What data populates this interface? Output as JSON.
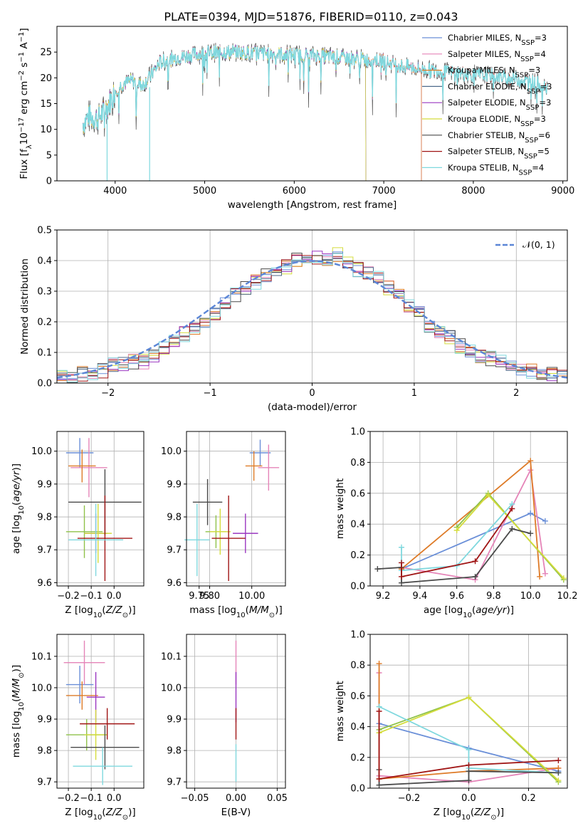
{
  "figure_title": "PLATE=0394, MJD=51876, FIBERID=0110, z=0.043",
  "colors": {
    "chabrier_miles": "#6a8fd8",
    "salpeter_miles": "#e584b8",
    "kroupa_miles": "#de7b28",
    "chabrier_elodie": "#4e6a8a",
    "salpeter_elodie": "#9a36c0",
    "kroupa_elodie": "#d4dc3c",
    "chabrier_stelib": "#4a4a4a",
    "salpeter_stelib": "#a01515",
    "kroupa_stelib": "#7fd8de",
    "green_elodie": "#8fc24a",
    "normal_curve": "#5b86d6"
  },
  "chart_data": [
    {
      "type": "line",
      "title": "PLATE=0394, MJD=51876, FIBERID=0110, z=0.043",
      "xlabel": "wavelength [Angstrom, rest frame]",
      "ylabel": "Flux [f_λ 10^-17 erg cm^-2 s^-1 A^-1]",
      "xlim": [
        3350,
        9050
      ],
      "ylim": [
        0,
        30
      ],
      "xticks": [
        "4000",
        "5000",
        "6000",
        "7000",
        "8000",
        "9000"
      ],
      "yticks": [
        "0",
        "5",
        "10",
        "15",
        "20",
        "25"
      ],
      "legend_position": "right",
      "continuum": {
        "x": [
          3640,
          3700,
          3800,
          3900,
          4000,
          4100,
          4200,
          4300,
          4400,
          4500,
          4700,
          5000,
          5300,
          5600,
          6000,
          6300,
          6600,
          7000,
          7200,
          7500,
          7800,
          8000,
          8300,
          8500,
          8800
        ],
        "y": [
          11,
          12.5,
          12,
          14,
          17.5,
          19,
          19.5,
          18.5,
          20.5,
          23,
          24,
          24.8,
          25,
          24.8,
          24.5,
          24.3,
          23.8,
          23.3,
          22.3,
          21.5,
          21,
          20.6,
          20.2,
          19.8,
          18.5
        ]
      },
      "series": [
        {
          "name": "Chabrier MILES, N_SSP=3",
          "x_end": 7420
        },
        {
          "name": "Salpeter MILES, N_SSP=4",
          "x_end": 7420
        },
        {
          "name": "Kroupa MILES, N_SSP=3",
          "x_end": 7420
        },
        {
          "name": "Chabrier ELODIE, N_SSP=3",
          "x_end": 6800
        },
        {
          "name": "Salpeter ELODIE, N_SSP=3",
          "x_end": 6800
        },
        {
          "name": "Kroupa ELODIE, N_SSP=3",
          "x_end": 6800
        },
        {
          "name": "Chabrier STELIB, N_SSP=6",
          "x_end": 8830
        },
        {
          "name": "Salpeter STELIB, N_SSP=5",
          "x_end": 8830
        },
        {
          "name": "Kroupa STELIB, N_SSP=4",
          "x_end": 8830
        }
      ],
      "legend": [
        {
          "prefix": "Chabrier MILES, N",
          "sub": "SSP",
          "suffix": "=3"
        },
        {
          "prefix": "Salpeter MILES, N",
          "sub": "SSP",
          "suffix": "=4"
        },
        {
          "prefix": "Kroupa MILES, N",
          "sub": "SSP",
          "suffix": "=3"
        },
        {
          "prefix": "Chabrier ELODIE, N",
          "sub": "SSP",
          "suffix": "=3"
        },
        {
          "prefix": "Salpeter ELODIE, N",
          "sub": "SSP",
          "suffix": "=3"
        },
        {
          "prefix": "Kroupa ELODIE, N",
          "sub": "SSP",
          "suffix": "=3"
        },
        {
          "prefix": "Chabrier STELIB, N",
          "sub": "SSP",
          "suffix": "=6"
        },
        {
          "prefix": "Salpeter STELIB, N",
          "sub": "SSP",
          "suffix": "=5"
        },
        {
          "prefix": "Kroupa STELIB, N",
          "sub": "SSP",
          "suffix": "=4"
        }
      ]
    },
    {
      "type": "line",
      "xlabel": "(data-model)/error",
      "ylabel": "Normed distribution",
      "xlim": [
        -2.5,
        2.5
      ],
      "ylim": [
        0,
        0.5
      ],
      "xticks": [
        "−2",
        "−1",
        "0",
        "1",
        "2"
      ],
      "yticks": [
        "0.0",
        "0.1",
        "0.2",
        "0.3",
        "0.4",
        "0.5"
      ],
      "grid": true,
      "legend_position": "top-right",
      "normal_curve_label": "𝒩(0, 1)",
      "bin_width": 0.1,
      "bin_start": -2.5,
      "base_histogram": [
        0.02,
        0.02,
        0.03,
        0.03,
        0.04,
        0.06,
        0.06,
        0.07,
        0.07,
        0.09,
        0.11,
        0.14,
        0.16,
        0.18,
        0.2,
        0.22,
        0.26,
        0.29,
        0.31,
        0.33,
        0.35,
        0.37,
        0.38,
        0.4,
        0.41,
        0.41,
        0.4,
        0.42,
        0.39,
        0.37,
        0.36,
        0.34,
        0.31,
        0.29,
        0.25,
        0.23,
        0.19,
        0.17,
        0.15,
        0.12,
        0.1,
        0.09,
        0.08,
        0.07,
        0.05,
        0.05,
        0.04,
        0.03,
        0.03,
        0.02
      ]
    },
    {
      "type": "scatter",
      "xlabel": "Z [log10(Z/Z_sun)]",
      "ylabel": "age [log10(age/yr)]",
      "xlim": [
        -0.25,
        0.13
      ],
      "ylim": [
        9.59,
        10.06
      ],
      "xticks": [
        "−0.2",
        "−0.1",
        "0.0"
      ],
      "yticks": [
        "9.6",
        "9.7",
        "9.8",
        "9.9",
        "10.0"
      ],
      "grid": true,
      "points": [
        {
          "x": -0.15,
          "xerr": 0.06,
          "y": 9.995,
          "yerr": 0.045,
          "color": "chabrier_miles"
        },
        {
          "x": -0.11,
          "xerr": 0.08,
          "y": 9.95,
          "yerr": 0.09,
          "color": "salpeter_miles"
        },
        {
          "x": -0.14,
          "xerr": 0.06,
          "y": 9.955,
          "yerr": 0.05,
          "color": "kroupa_miles"
        },
        {
          "x": -0.13,
          "xerr": 0.08,
          "y": 9.755,
          "yerr": 0.08,
          "color": "green_elodie"
        },
        {
          "x": -0.08,
          "xerr": 0.05,
          "y": 9.75,
          "yerr": 0.06,
          "color": "salpeter_elodie"
        },
        {
          "x": -0.07,
          "xerr": 0.06,
          "y": 9.75,
          "yerr": 0.09,
          "color": "kroupa_elodie"
        },
        {
          "x": -0.04,
          "xerr": 0.16,
          "y": 9.845,
          "yerr": 0.1,
          "color": "chabrier_stelib"
        },
        {
          "x": -0.04,
          "xerr": 0.12,
          "y": 9.735,
          "yerr": 0.13,
          "color": "salpeter_stelib"
        },
        {
          "x": -0.08,
          "xerr": 0.12,
          "y": 9.73,
          "yerr": 0.11,
          "color": "kroupa_stelib"
        }
      ]
    },
    {
      "type": "scatter",
      "xlabel": "mass [log10(M/M_sun)]",
      "xlim": [
        9.69,
        10.16
      ],
      "ylim": [
        9.59,
        10.06
      ],
      "xticks": [
        "9.75",
        "9.80",
        "10.00"
      ],
      "yticks": [
        "9.6",
        "9.7",
        "9.8",
        "9.9",
        "10.0"
      ],
      "grid": true,
      "points": [
        {
          "x": 10.04,
          "xerr": 0.05,
          "y": 9.995,
          "yerr": 0.04,
          "color": "chabrier_miles"
        },
        {
          "x": 10.08,
          "xerr": 0.05,
          "y": 9.95,
          "yerr": 0.07,
          "color": "salpeter_miles"
        },
        {
          "x": 10.01,
          "xerr": 0.04,
          "y": 9.955,
          "yerr": 0.045,
          "color": "kroupa_miles"
        },
        {
          "x": 9.83,
          "xerr": 0.05,
          "y": 9.755,
          "yerr": 0.05,
          "color": "green_elodie"
        },
        {
          "x": 9.97,
          "xerr": 0.06,
          "y": 9.75,
          "yerr": 0.06,
          "color": "salpeter_elodie"
        },
        {
          "x": 9.85,
          "xerr": 0.05,
          "y": 9.755,
          "yerr": 0.07,
          "color": "kroupa_elodie"
        },
        {
          "x": 9.79,
          "xerr": 0.07,
          "y": 9.845,
          "yerr": 0.07,
          "color": "chabrier_stelib"
        },
        {
          "x": 9.89,
          "xerr": 0.08,
          "y": 9.735,
          "yerr": 0.13,
          "color": "salpeter_stelib"
        },
        {
          "x": 9.74,
          "xerr": 0.06,
          "y": 9.73,
          "yerr": 0.11,
          "color": "kroupa_stelib"
        }
      ]
    },
    {
      "type": "line",
      "xlabel": "age [log10(age/yr)]",
      "ylabel": "mass weight",
      "xlim": [
        9.13,
        10.2
      ],
      "ylim": [
        0,
        1
      ],
      "xticks": [
        "9.2",
        "9.4",
        "9.6",
        "9.8",
        "10.0",
        "10.2"
      ],
      "yticks": [
        "0.0",
        "0.2",
        "0.4",
        "0.6",
        "0.8",
        "1.0"
      ],
      "grid": true,
      "series": [
        {
          "color": "chabrier_miles",
          "x": [
            9.3,
            10.0,
            10.08
          ],
          "y": [
            0.11,
            0.47,
            0.42
          ]
        },
        {
          "color": "salpeter_miles",
          "x": [
            9.3,
            9.7,
            10.0,
            10.08
          ],
          "y": [
            0.12,
            0.04,
            0.75,
            0.08
          ]
        },
        {
          "color": "kroupa_miles",
          "x": [
            9.3,
            10.0,
            10.05
          ],
          "y": [
            0.11,
            0.81,
            0.06
          ]
        },
        {
          "color": "green_elodie",
          "x": [
            9.6,
            9.77,
            10.18
          ],
          "y": [
            0.38,
            0.6,
            0.04
          ]
        },
        {
          "color": "kroupa_elodie",
          "x": [
            9.6,
            9.77,
            10.18
          ],
          "y": [
            0.36,
            0.59,
            0.05
          ]
        },
        {
          "color": "kroupa_stelib",
          "x": [
            9.3,
            9.3,
            9.6,
            9.9
          ],
          "y": [
            0.25,
            0.1,
            0.13,
            0.53
          ]
        },
        {
          "color": "chabrier_stelib",
          "x": [
            9.17,
            9.3,
            9.3,
            9.7,
            9.9,
            10.0
          ],
          "y": [
            0.11,
            0.12,
            0.02,
            0.06,
            0.37,
            0.34
          ]
        },
        {
          "color": "salpeter_stelib",
          "x": [
            9.3,
            9.3,
            9.7,
            9.9
          ],
          "y": [
            0.15,
            0.06,
            0.16,
            0.5
          ]
        }
      ]
    },
    {
      "type": "scatter",
      "xlabel": "Z [log10(Z/Z_sun)]",
      "ylabel": "mass [log10(M/M_sun)]",
      "xlim": [
        -0.25,
        0.13
      ],
      "ylim": [
        9.68,
        10.17
      ],
      "xticks": [
        "−0.2",
        "−0.1",
        "0.0"
      ],
      "yticks": [
        "9.7",
        "9.8",
        "9.9",
        "10.0",
        "10.1"
      ],
      "grid": true,
      "points": [
        {
          "x": -0.15,
          "xerr": 0.06,
          "y": 10.01,
          "yerr": 0.06,
          "color": "chabrier_miles"
        },
        {
          "x": -0.13,
          "xerr": 0.09,
          "y": 10.08,
          "yerr": 0.07,
          "color": "salpeter_miles"
        },
        {
          "x": -0.14,
          "xerr": 0.07,
          "y": 9.975,
          "yerr": 0.045,
          "color": "kroupa_miles"
        },
        {
          "x": -0.12,
          "xerr": 0.09,
          "y": 9.85,
          "yerr": 0.05,
          "color": "green_elodie"
        },
        {
          "x": -0.08,
          "xerr": 0.04,
          "y": 9.97,
          "yerr": 0.08,
          "color": "salpeter_elodie"
        },
        {
          "x": -0.08,
          "xerr": 0.05,
          "y": 9.85,
          "yerr": 0.08,
          "color": "kroupa_elodie"
        },
        {
          "x": -0.04,
          "xerr": 0.15,
          "y": 9.81,
          "yerr": 0.07,
          "color": "chabrier_stelib"
        },
        {
          "x": -0.03,
          "xerr": 0.12,
          "y": 9.885,
          "yerr": 0.05,
          "color": "salpeter_stelib"
        },
        {
          "x": -0.05,
          "xerr": 0.13,
          "y": 9.75,
          "yerr": 0.06,
          "color": "kroupa_stelib"
        }
      ]
    },
    {
      "type": "scatter",
      "xlabel": "E(B-V)",
      "xlim": [
        -0.06,
        0.06
      ],
      "ylim": [
        9.68,
        10.17
      ],
      "xticks": [
        "−0.05",
        "0.00",
        "0.05"
      ],
      "yticks": [
        "9.7",
        "9.8",
        "9.9",
        "10.0",
        "10.1"
      ],
      "grid": true,
      "points": [
        {
          "x": 0.0,
          "xerr": 0.0,
          "y": 10.08,
          "yerr": 0.07,
          "color": "salpeter_miles"
        },
        {
          "x": 0.0,
          "xerr": 0.0,
          "y": 9.97,
          "yerr": 0.08,
          "color": "salpeter_elodie"
        },
        {
          "x": 0.0,
          "xerr": 0.0,
          "y": 9.885,
          "yerr": 0.05,
          "color": "salpeter_stelib"
        },
        {
          "x": 0.0,
          "xerr": 0.0,
          "y": 9.76,
          "yerr": 0.06,
          "color": "kroupa_stelib"
        }
      ]
    },
    {
      "type": "line",
      "xlabel": "Z [log10(Z/Z_sun)]",
      "ylabel": "mass weight",
      "xlim": [
        -0.33,
        0.33
      ],
      "ylim": [
        0,
        1
      ],
      "xticks": [
        "−0.2",
        "0.0",
        "0.2"
      ],
      "yticks": [
        "0.0",
        "0.2",
        "0.4",
        "0.6",
        "0.8",
        "1.0"
      ],
      "grid": true,
      "series": [
        {
          "color": "chabrier_miles",
          "x": [
            -0.3,
            0.0,
            0.3
          ],
          "y": [
            0.42,
            0.26,
            0.11
          ]
        },
        {
          "color": "salpeter_miles",
          "x": [
            -0.3,
            -0.3,
            0.0,
            0.3
          ],
          "y": [
            0.75,
            0.08,
            0.04,
            0.13
          ]
        },
        {
          "color": "kroupa_miles",
          "x": [
            -0.3,
            -0.3,
            0.0,
            0.3
          ],
          "y": [
            0.81,
            0.06,
            0.11,
            0.13
          ]
        },
        {
          "color": "green_elodie",
          "x": [
            -0.3,
            0.0,
            0.3
          ],
          "y": [
            0.38,
            0.59,
            0.04
          ]
        },
        {
          "color": "kroupa_elodie",
          "x": [
            -0.3,
            0.0,
            0.3
          ],
          "y": [
            0.36,
            0.59,
            0.05
          ]
        },
        {
          "color": "kroupa_stelib",
          "x": [
            -0.3,
            0.0,
            0.0,
            0.3
          ],
          "y": [
            0.53,
            0.25,
            0.13,
            0.1
          ]
        },
        {
          "color": "chabrier_stelib",
          "x": [
            -0.3,
            -0.3,
            0.0,
            0.0,
            0.3
          ],
          "y": [
            0.12,
            0.02,
            0.05,
            0.11,
            0.1
          ]
        },
        {
          "color": "salpeter_stelib",
          "x": [
            -0.3,
            -0.3,
            0.0,
            0.3
          ],
          "y": [
            0.5,
            0.06,
            0.15,
            0.18
          ]
        }
      ]
    }
  ]
}
